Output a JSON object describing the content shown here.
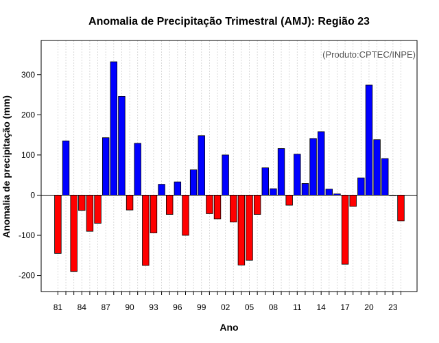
{
  "chart_data": {
    "type": "bar",
    "title": "Anomalia de Precipitação Trimestral (AMJ): Região 23",
    "xlabel": "Ano",
    "ylabel": "Anomalia de precipitação (mm)",
    "credit": "(Produto:CPTEC/INPE)",
    "ylim": [
      -240,
      385
    ],
    "yticks": [
      -200,
      -100,
      0,
      100,
      200,
      300
    ],
    "ytick_labels": [
      "-200",
      "-100",
      "0",
      "100",
      "200",
      "300"
    ],
    "xtick_years": [
      1981,
      1984,
      1987,
      1990,
      1993,
      1996,
      1999,
      2002,
      2005,
      2008,
      2011,
      2014,
      2017,
      2020,
      2023
    ],
    "xtick_labels": [
      "81",
      "84",
      "87",
      "90",
      "93",
      "96",
      "99",
      "02",
      "05",
      "08",
      "11",
      "14",
      "17",
      "20",
      "23"
    ],
    "grid": true,
    "positive_color": "#0000ff",
    "negative_color": "#ff0000",
    "years": [
      1981,
      1982,
      1983,
      1984,
      1985,
      1986,
      1987,
      1988,
      1989,
      1990,
      1991,
      1992,
      1993,
      1994,
      1995,
      1996,
      1997,
      1998,
      1999,
      2000,
      2001,
      2002,
      2003,
      2004,
      2005,
      2006,
      2007,
      2008,
      2009,
      2010,
      2011,
      2012,
      2013,
      2014,
      2015,
      2016,
      2017,
      2018,
      2019,
      2020,
      2021,
      2022,
      2023,
      2024
    ],
    "values": [
      -145,
      135,
      -190,
      -38,
      -90,
      -70,
      143,
      332,
      246,
      -37,
      129,
      -175,
      -94,
      27,
      -48,
      33,
      -100,
      63,
      148,
      -46,
      -59,
      100,
      -67,
      -174,
      -162,
      -48,
      68,
      16,
      116,
      -25,
      102,
      29,
      141,
      158,
      15,
      3,
      -172,
      -28,
      43,
      274,
      138,
      91,
      0,
      -64
    ]
  }
}
